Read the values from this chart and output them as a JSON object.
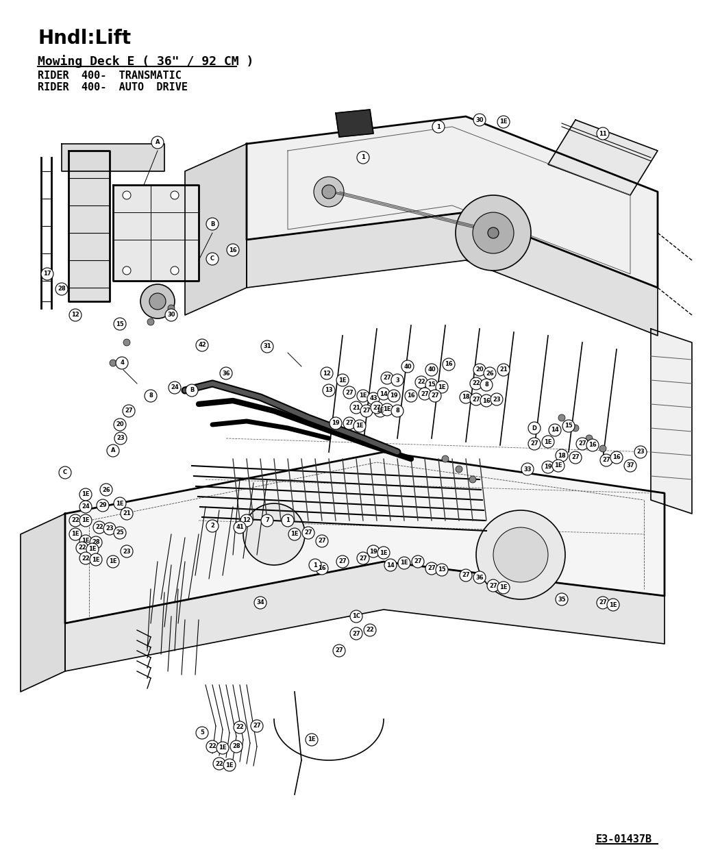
{
  "title": "Hndl:Lift",
  "subtitle": "Mowing Deck E ( 36\" / 92 CM )",
  "line1": "RIDER  400-  TRANSMATIC",
  "line2": "RIDER  400-  AUTO  DRIVE",
  "diagram_code": "E3-01437B",
  "bg_color": "#ffffff",
  "fg_color": "#000000",
  "title_fontsize": 20,
  "subtitle_fontsize": 13,
  "body_fontsize": 11,
  "code_fontsize": 11,
  "figsize": [
    10.32,
    12.6
  ],
  "dpi": 100
}
